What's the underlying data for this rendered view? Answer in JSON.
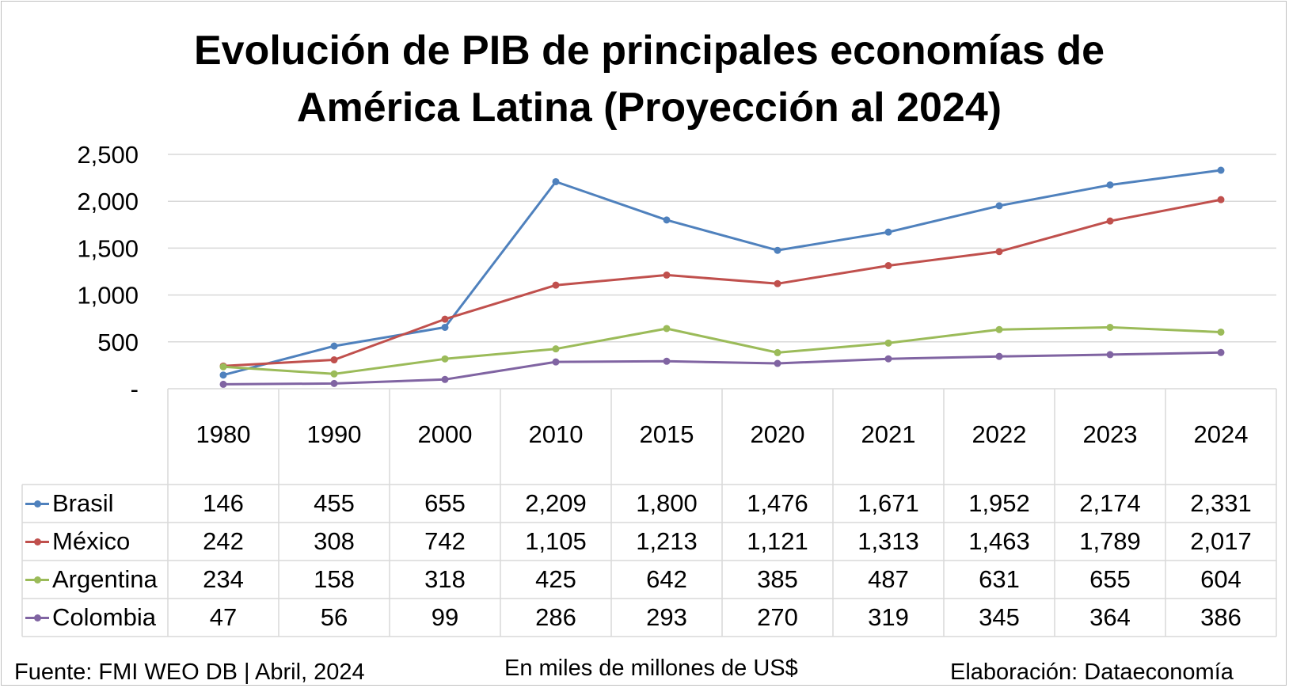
{
  "chart_data": {
    "type": "line",
    "title_lines": [
      "Evolución de PIB de principales economías de",
      "América Latina (Proyección al 2024)"
    ],
    "categories": [
      "1980",
      "1990",
      "2000",
      "2010",
      "2015",
      "2020",
      "2021",
      "2022",
      "2023",
      "2024"
    ],
    "y_ticks": [
      "2,500",
      "2,000",
      "1,500",
      "1,000",
      "500",
      "-"
    ],
    "y_tick_values": [
      2500,
      2000,
      1500,
      1000,
      500,
      0
    ],
    "ylim": [
      0,
      2500
    ],
    "grid": true,
    "legend": "data table",
    "series": [
      {
        "name": "Brasil",
        "color": "#4f81bd",
        "values": [
          146,
          455,
          655,
          2209,
          1800,
          1476,
          1671,
          1952,
          2174,
          2331
        ],
        "labels": [
          "146",
          "455",
          "655",
          "2,209",
          "1,800",
          "1,476",
          "1,671",
          "1,952",
          "2,174",
          "2,331"
        ]
      },
      {
        "name": "México",
        "color": "#c0504d",
        "values": [
          242,
          308,
          742,
          1105,
          1213,
          1121,
          1313,
          1463,
          1789,
          2017
        ],
        "labels": [
          "242",
          "308",
          "742",
          "1,105",
          "1,213",
          "1,121",
          "1,313",
          "1,463",
          "1,789",
          "2,017"
        ]
      },
      {
        "name": "Argentina",
        "color": "#9bbb59",
        "values": [
          234,
          158,
          318,
          425,
          642,
          385,
          487,
          631,
          655,
          604
        ],
        "labels": [
          "234",
          "158",
          "318",
          "425",
          "642",
          "385",
          "487",
          "631",
          "655",
          "604"
        ]
      },
      {
        "name": "Colombia",
        "color": "#8064a2",
        "values": [
          47,
          56,
          99,
          286,
          293,
          270,
          319,
          345,
          364,
          386
        ],
        "labels": [
          "47",
          "56",
          "99",
          "286",
          "293",
          "270",
          "319",
          "345",
          "364",
          "386"
        ]
      }
    ]
  },
  "footer": {
    "source": "Fuente: FMI WEO DB | Abril, 2024",
    "unit": "En miles de millones de US$",
    "credit": "Elaboración: Dataeconomía"
  }
}
